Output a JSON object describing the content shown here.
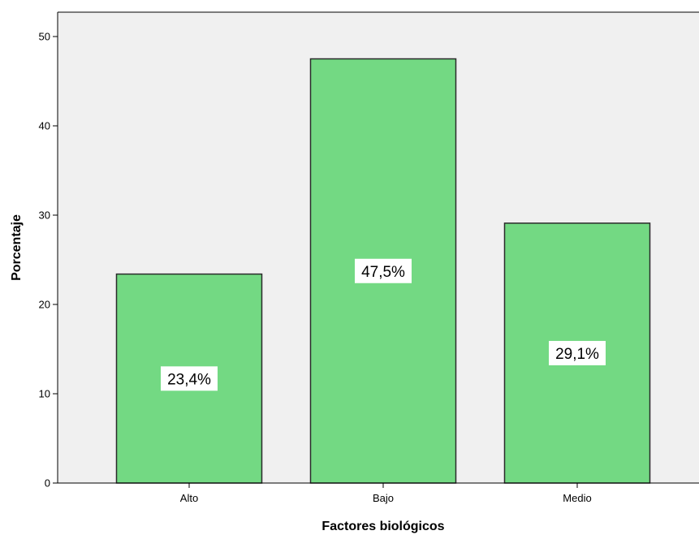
{
  "chart_data": {
    "type": "bar",
    "categories": [
      "Alto",
      "Bajo",
      "Medio"
    ],
    "values": [
      23.4,
      47.5,
      29.1
    ],
    "data_labels": [
      "23,4%",
      "47,5%",
      "29,1%"
    ],
    "xlabel": "Factores biológicos",
    "ylabel": "Porcentaje",
    "ylim": [
      0,
      50
    ],
    "yticks": [
      "0",
      "10",
      "20",
      "30",
      "40",
      "50"
    ],
    "grid": false,
    "legend": "none"
  },
  "colors": {
    "plot_background": "#f0f0f0",
    "bar_fill": "#73d983",
    "bar_stroke": "#2b2b2b"
  }
}
